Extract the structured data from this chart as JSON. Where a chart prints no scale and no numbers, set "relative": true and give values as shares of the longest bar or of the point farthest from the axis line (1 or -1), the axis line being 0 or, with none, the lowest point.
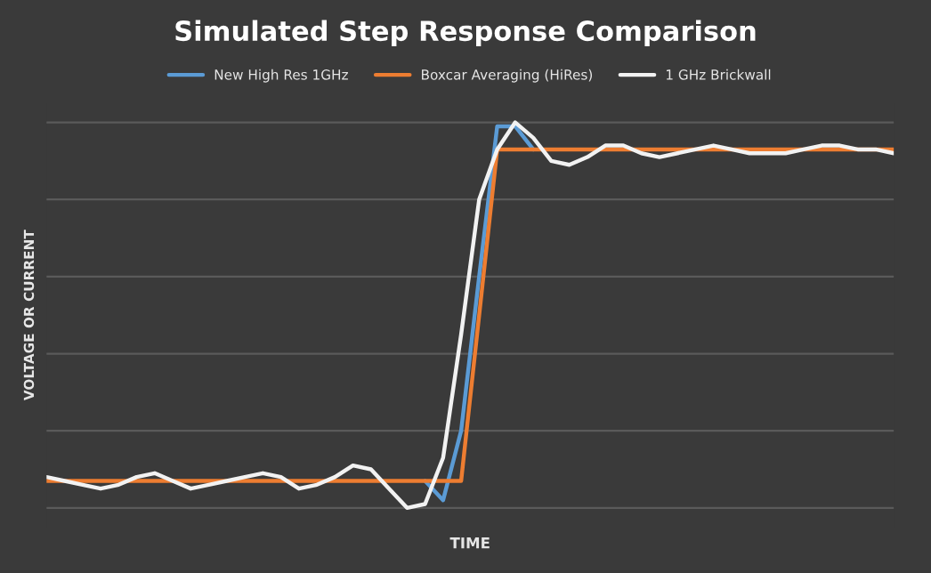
{
  "chart_data": {
    "type": "line",
    "title": "Simulated Step Response Comparison",
    "xlabel": "TIME",
    "ylabel": "VOLTAGE OR CURRENT",
    "relative": true,
    "grid": "y",
    "legend": "top",
    "tick_labels": false,
    "marker": "none",
    "line_style": "solid",
    "categories": [
      null,
      null,
      null,
      null,
      null,
      null,
      null,
      null,
      null,
      null,
      null,
      null,
      null,
      null,
      null,
      null,
      null,
      null,
      null,
      null,
      null,
      null,
      null,
      null,
      null,
      null,
      null,
      null,
      null,
      null,
      null,
      null,
      null,
      null,
      null,
      null,
      null,
      null,
      null,
      null,
      null,
      null,
      null,
      null,
      null,
      null,
      null,
      null
    ],
    "series": [
      {
        "name": "New High Res 1GHz",
        "color": "#5b9bd5",
        "values": [
          null,
          null,
          null,
          null,
          null,
          null,
          null,
          null,
          null,
          null,
          null,
          null,
          null,
          null,
          null,
          null,
          null,
          null,
          null,
          null,
          null,
          0.07,
          0.02,
          0.2,
          0.6,
          0.99,
          0.99,
          0.93,
          null,
          null,
          null,
          null,
          null,
          null,
          null,
          null,
          null,
          null,
          null,
          null,
          null,
          null,
          null,
          null,
          null,
          null,
          null,
          null
        ]
      },
      {
        "name": "Boxcar Averaging (HiRes)",
        "color": "#ed7d31",
        "values": [
          0.07,
          0.07,
          0.07,
          0.07,
          0.07,
          0.07,
          0.07,
          0.07,
          0.07,
          0.07,
          0.07,
          0.07,
          0.07,
          0.07,
          0.07,
          0.07,
          0.07,
          0.07,
          0.07,
          0.07,
          0.07,
          0.07,
          0.07,
          0.07,
          0.5,
          0.93,
          0.93,
          0.93,
          0.93,
          0.93,
          0.93,
          0.93,
          0.93,
          0.93,
          0.93,
          0.93,
          0.93,
          0.93,
          0.93,
          0.93,
          0.93,
          0.93,
          0.93,
          0.93,
          0.93,
          0.93,
          0.93,
          0.93
        ]
      },
      {
        "name": "1 GHz Brickwall",
        "color": "#f2f2f2",
        "values": [
          0.08,
          0.07,
          0.06,
          0.05,
          0.06,
          0.08,
          0.09,
          0.07,
          0.05,
          0.06,
          0.07,
          0.08,
          0.09,
          0.08,
          0.05,
          0.06,
          0.08,
          0.11,
          0.1,
          0.05,
          0,
          0.01,
          0.13,
          0.45,
          0.8,
          0.93,
          1,
          0.96,
          0.9,
          0.89,
          0.91,
          0.94,
          0.94,
          0.92,
          0.91,
          0.92,
          0.93,
          0.94,
          0.93,
          0.92,
          0.92,
          0.92,
          0.93,
          0.94,
          0.94,
          0.93,
          0.93,
          0.92
        ]
      }
    ]
  }
}
